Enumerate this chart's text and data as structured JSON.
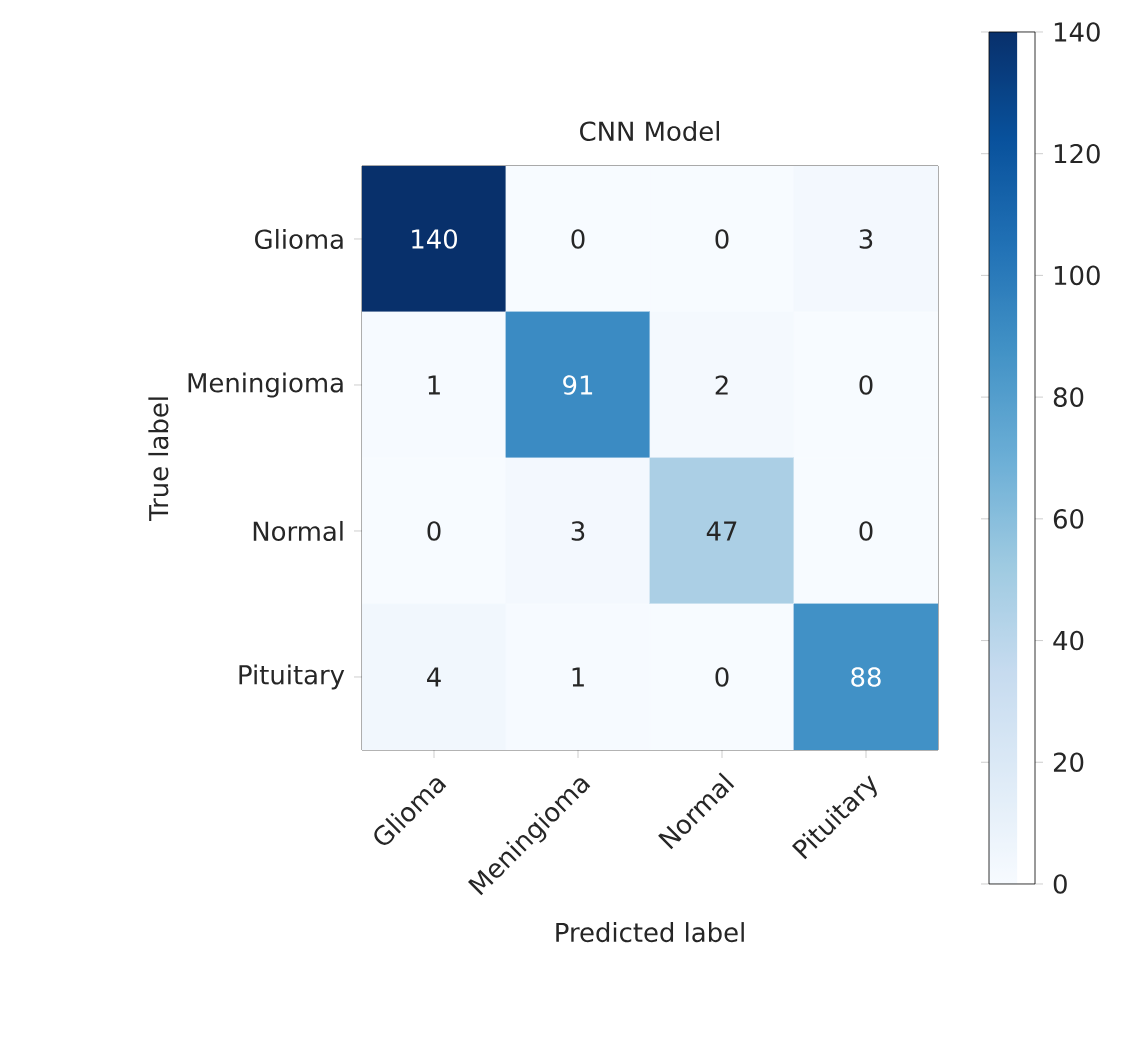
{
  "chart_data": {
    "type": "heatmap",
    "title": "CNN Model",
    "xlabel": "Predicted label",
    "ylabel": "True label",
    "categories": [
      "Glioma",
      "Meningioma",
      "Normal",
      "Pituitary"
    ],
    "y_categories": [
      "Glioma",
      "Meningioma",
      "Normal",
      "Pituitary"
    ],
    "cells": [
      [
        140,
        0,
        0,
        3
      ],
      [
        1,
        91,
        2,
        0
      ],
      [
        0,
        3,
        47,
        0
      ],
      [
        4,
        1,
        0,
        88
      ]
    ],
    "data_labels": true,
    "clim": [
      0,
      140
    ],
    "cticks": [
      0,
      20,
      40,
      60,
      80,
      100,
      120,
      140
    ]
  }
}
